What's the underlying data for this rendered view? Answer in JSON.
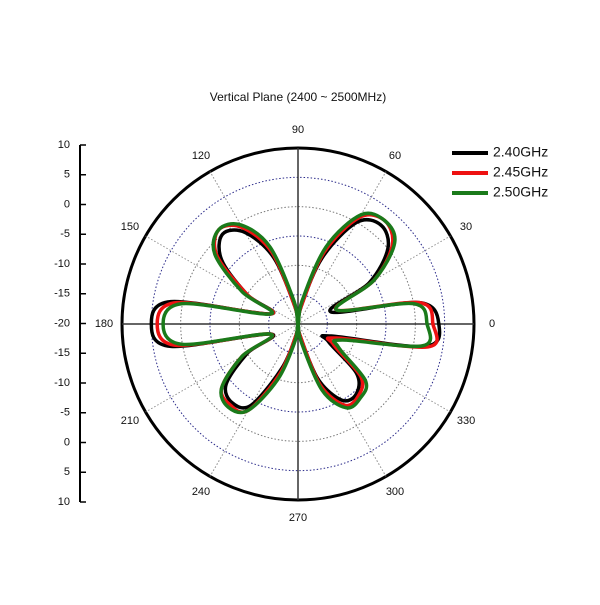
{
  "chart_data": {
    "type": "polar",
    "title": "Vertical Plane (2400 ~ 2500MHz)",
    "theta": [
      0,
      10,
      20,
      30,
      40,
      50,
      60,
      70,
      80,
      90,
      100,
      110,
      120,
      130,
      140,
      150,
      160,
      170,
      180,
      190,
      200,
      210,
      220,
      230,
      240,
      250,
      260,
      270,
      280,
      290,
      300,
      310,
      320,
      330,
      340,
      350
    ],
    "thetaticks": [
      0,
      30,
      60,
      90,
      120,
      150,
      180,
      210,
      240,
      270,
      300,
      330
    ],
    "rlim": [
      -20,
      10
    ],
    "rticks": [
      -20,
      -15,
      -10,
      -5,
      0,
      5,
      10
    ],
    "left_axis_ticks": [
      10,
      5,
      0,
      -5,
      -10,
      -15,
      -20,
      -15,
      -10,
      -5,
      0,
      5,
      10
    ],
    "legend": "top-right",
    "series": [
      {
        "name": "2.40GHz",
        "color": "#000000",
        "values": [
          4,
          1,
          -14,
          -6,
          0,
          2,
          0,
          -8,
          -17,
          -20,
          -17,
          -8,
          -2,
          0,
          -3,
          -10,
          -15,
          2,
          5,
          2,
          -15,
          -10,
          -4,
          -2.5,
          -4,
          -12,
          -18,
          -20,
          -18,
          -10,
          -5,
          -4.5,
          -7,
          -14,
          -14,
          2
        ]
      },
      {
        "name": "2.45GHz",
        "color": "#ee1111",
        "values": [
          3,
          1,
          -13,
          -5,
          1,
          3,
          1,
          -7,
          -17,
          -20,
          -17,
          -7,
          -1,
          1,
          -2,
          -10,
          -15,
          1,
          4,
          1,
          -15,
          -9,
          -3,
          -2,
          -3,
          -11,
          -18,
          -20,
          -18,
          -9,
          -4,
          -4,
          -6,
          -13,
          -13,
          2.5
        ]
      },
      {
        "name": "2.50GHz",
        "color": "#1a7a1a",
        "values": [
          2,
          0,
          -13,
          -5,
          1.5,
          3,
          1.5,
          -6,
          -16,
          -20,
          -16,
          -6,
          -0.5,
          1,
          -1.5,
          -9,
          -15,
          0,
          3,
          0,
          -15,
          -9,
          -3,
          -1.5,
          -3,
          -10,
          -17,
          -20,
          -17,
          -8,
          -3.5,
          -3.5,
          -5,
          -12,
          -12,
          1.5
        ]
      }
    ]
  }
}
